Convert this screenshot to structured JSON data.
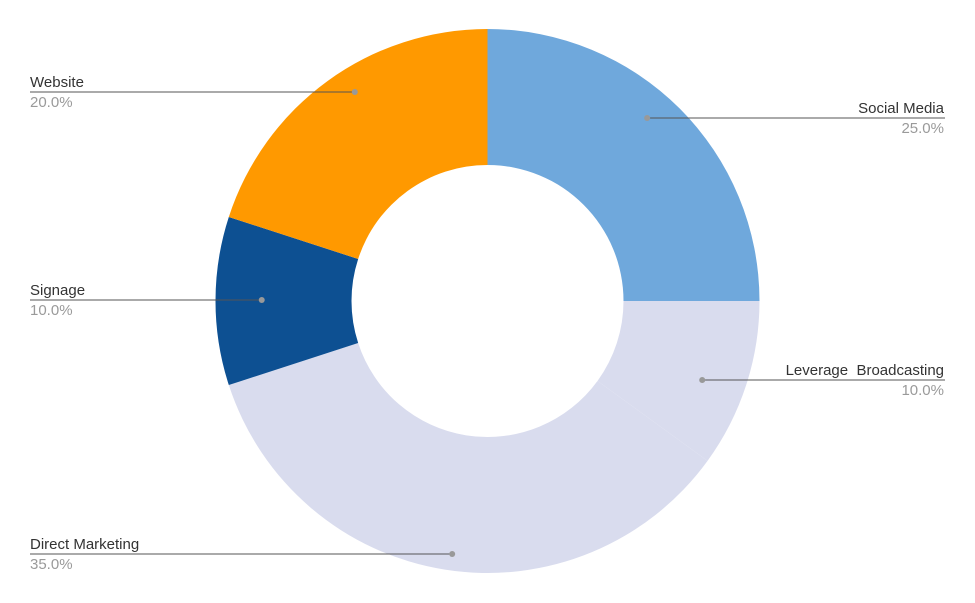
{
  "chart_data": {
    "type": "pie",
    "donut": true,
    "title": "",
    "legend": "none",
    "slices": [
      {
        "name": "Social Media",
        "value": 25.0,
        "label": "25.0%",
        "color": "#6fa8dc"
      },
      {
        "name": "Leverage  Broadcasting",
        "value": 10.0,
        "label": "10.0%",
        "color": "#d9dcee"
      },
      {
        "name": "Direct Marketing",
        "value": 35.0,
        "label": "35.0%",
        "color": "#d9dcee"
      },
      {
        "name": "Signage",
        "value": 10.0,
        "label": "10.0%",
        "color": "#0d5092"
      },
      {
        "name": "Website",
        "value": 20.0,
        "label": "20.0%",
        "color": "#ff9900"
      }
    ]
  }
}
